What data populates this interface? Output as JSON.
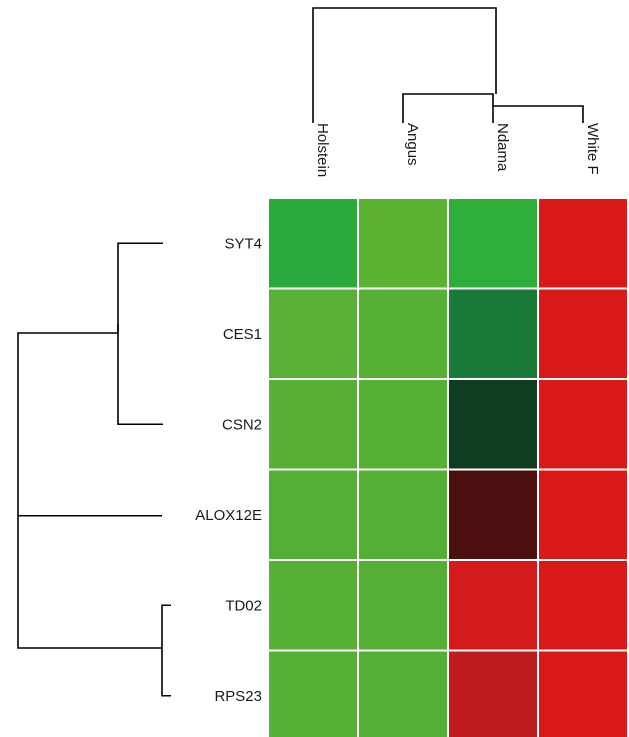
{
  "chart_data": {
    "type": "heatmap",
    "title": "",
    "columns": [
      "Holstein",
      "Angus",
      "Ndama",
      "White F"
    ],
    "rows": [
      "SYT4",
      "CES1",
      "CSN2",
      "ALOX12E",
      "TD02",
      "RPS23"
    ],
    "cell_colors": [
      [
        "#2aaa3c",
        "#5db233",
        "#2fae3c",
        "#d9181a"
      ],
      [
        "#58b034",
        "#55b034",
        "#1b7a3a",
        "#d9181a"
      ],
      [
        "#57b034",
        "#55b034",
        "#0e3d22",
        "#d9181a"
      ],
      [
        "#53b034",
        "#53b034",
        "#4b0f0f",
        "#d9181a"
      ],
      [
        "#56b034",
        "#53b034",
        "#d41a1b",
        "#d9181a"
      ],
      [
        "#55b034",
        "#53b034",
        "#be1c1f",
        "#d9181a"
      ]
    ],
    "column_dendrogram": "(Holstein,(Angus,(Ndama,White F)))",
    "row_dendrogram": "(((SYT4,(CES1,CSN2)),ALOX12E),(TD02,RPS23))",
    "color_scale": {
      "low": "green",
      "mid": "black",
      "high": "red"
    },
    "legend": "none",
    "grid": false
  }
}
